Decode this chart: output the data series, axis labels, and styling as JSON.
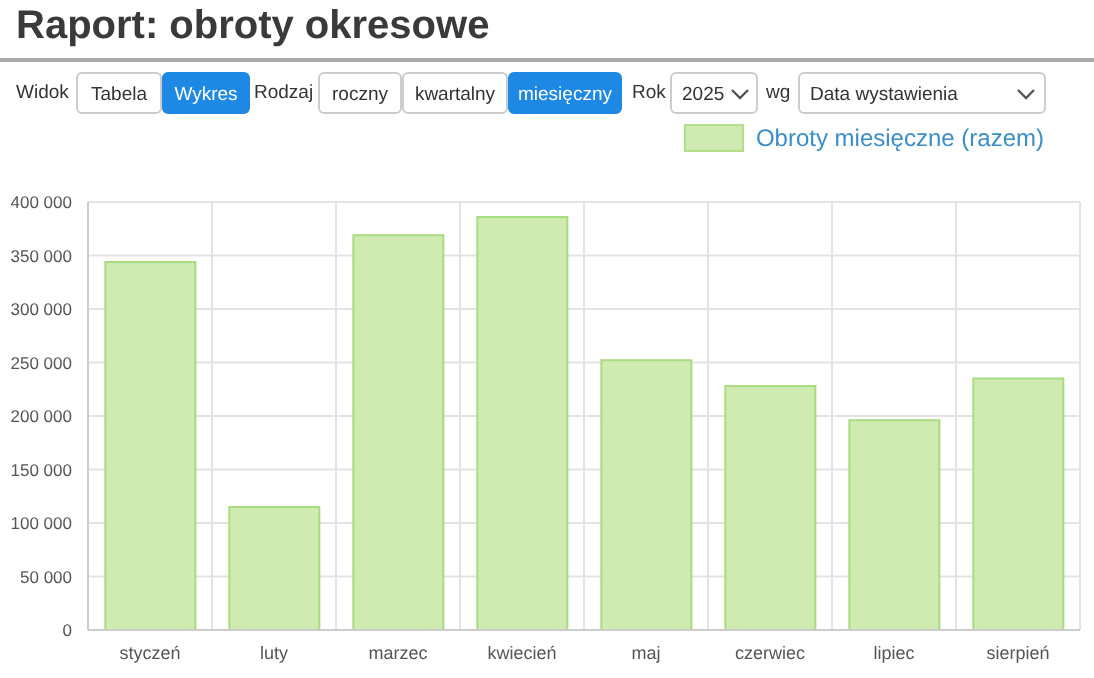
{
  "chart_data": {
    "type": "bar",
    "title": "Raport: obroty okresowe",
    "annotations": [
      "Widok",
      "Tabela",
      "Wykres",
      "Rodzaj",
      "roczny",
      "kwartalny",
      "miesięczny",
      "Rok",
      "2025",
      "wg",
      "Data wystawienia"
    ],
    "categories": [
      "styczeń",
      "luty",
      "marzec",
      "kwiecień",
      "maj",
      "czerwiec",
      "lipiec",
      "sierpień"
    ],
    "series": [
      {
        "name": "Obroty miesięczne (razem)",
        "color": "#d0ebb2",
        "values": [
          344000,
          115000,
          369000,
          386000,
          252000,
          228000,
          196000,
          235000
        ]
      }
    ],
    "ylim": [
      0,
      400000
    ],
    "yticks": [
      0,
      50000,
      100000,
      150000,
      200000,
      250000,
      300000,
      350000,
      400000
    ],
    "grid": true,
    "legend": "top right"
  }
}
